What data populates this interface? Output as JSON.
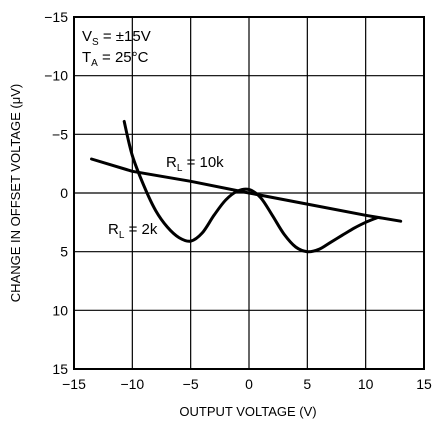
{
  "chart_data": {
    "type": "line",
    "xlabel": "OUTPUT VOLTAGE (V)",
    "ylabel": "CHANGE IN OFFSET VOLTAGE (μV)",
    "xlim": [
      -15,
      15
    ],
    "ylim": [
      -15,
      15
    ],
    "y_inverted": true,
    "x_ticks": [
      -15,
      -10,
      -5,
      0,
      5,
      10,
      15
    ],
    "y_ticks": [
      -15,
      -10,
      -5,
      0,
      5,
      10,
      15
    ],
    "x_tick_labels": [
      "−15",
      "−10",
      "−5",
      "0",
      "5",
      "10",
      "15"
    ],
    "y_tick_labels": [
      "−15",
      "−10",
      "−5",
      "0",
      "5",
      "10",
      "15"
    ],
    "grid": true,
    "annotations": {
      "vs_main": "V",
      "vs_sub": "S",
      "vs_rest": " = ±15V",
      "ta_main": "T",
      "ta_sub": "A",
      "ta_rest": " = 25°C"
    },
    "series": [
      {
        "label_main": "R",
        "label_sub": "L",
        "label_rest": " = 10k",
        "x": [
          -13.5,
          -10,
          -5,
          0,
          5,
          10,
          13
        ],
        "y": [
          -2.9,
          -1.85,
          -1.0,
          0.0,
          0.95,
          1.9,
          2.4
        ]
      },
      {
        "label_main": "R",
        "label_sub": "L",
        "label_rest": " = 2k",
        "x": [
          -10.7,
          -10,
          -9,
          -8,
          -7,
          -6,
          -5,
          -4,
          -3,
          -2,
          -1,
          0,
          1,
          2,
          3,
          4,
          5,
          6,
          7,
          8,
          9,
          10,
          11
        ],
        "y": [
          -6.1,
          -3.2,
          -0.6,
          1.5,
          2.9,
          3.8,
          4.1,
          3.4,
          1.9,
          0.6,
          -0.15,
          -0.3,
          0.4,
          1.9,
          3.5,
          4.6,
          5.0,
          4.8,
          4.2,
          3.6,
          3.0,
          2.5,
          2.1
        ]
      }
    ]
  }
}
